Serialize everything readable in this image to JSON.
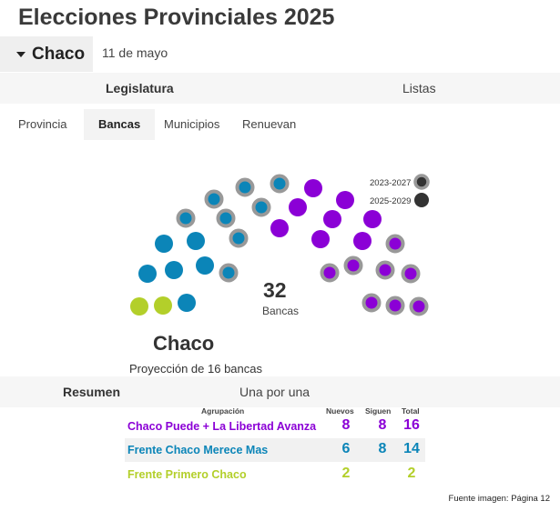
{
  "page": {
    "title": "Elecciones Provinciales 2025",
    "date": "11 de mayo"
  },
  "province_select": {
    "label": "Chaco"
  },
  "tabs_main": [
    "Legislatura",
    "Listas"
  ],
  "tabs_sub": [
    "Provincia",
    "Bancas",
    "Municipios",
    "Renuevan"
  ],
  "legend": {
    "term_2023": "2023-2027",
    "term_2025": "2025-2029"
  },
  "chamber": {
    "total_value": "32",
    "total_label": "Bancas",
    "province": "Chaco",
    "projection": "Proyección de 16 bancas"
  },
  "tabs_summary": [
    "Resumen",
    "Una por una"
  ],
  "table": {
    "headers": {
      "agrupacion": "Agrupación",
      "nuevos": "Nuevos",
      "siguen": "Siguen",
      "total": "Total"
    },
    "rows": [
      {
        "name": "Chaco Puede + La Libertad Avanza",
        "nuevos": "8",
        "siguen": "8",
        "total": "16",
        "color": "#8b00d6"
      },
      {
        "name": "Frente Chaco Merece Mas",
        "nuevos": "6",
        "siguen": "8",
        "total": "14",
        "color": "#0b85b8"
      },
      {
        "name": "Frente Primero Chaco",
        "nuevos": "2",
        "siguen": "",
        "total": "2",
        "color": "#b3cf2a"
      }
    ]
  },
  "source": "Fuente imagen: Página 12",
  "colors": {
    "purple": "#8b00d6",
    "blue": "#0b85b8",
    "green": "#b3cf2a",
    "ring": "#999999"
  }
}
